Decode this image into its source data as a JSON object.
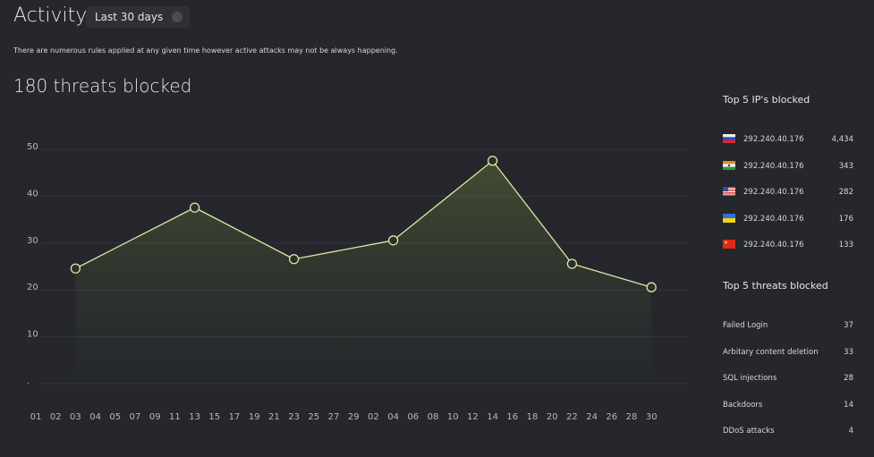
{
  "header": {
    "title": "Activity",
    "range": "Last 30 days",
    "description": "There are numerous rules applied at any given time however active attacks may not be always happening.",
    "summary": "180 threats blocked"
  },
  "top_ips": {
    "title": "Top 5 IP's blocked",
    "rows": [
      {
        "ip": "292.240.40.176",
        "count": "4,434"
      },
      {
        "ip": "292.240.40.176",
        "count": "343"
      },
      {
        "ip": "292.240.40.176",
        "count": "282"
      },
      {
        "ip": "292.240.40.176",
        "count": "176"
      },
      {
        "ip": "292.240.40.176",
        "count": "133"
      }
    ]
  },
  "top_threats": {
    "title": "Top 5 threats blocked",
    "rows": [
      {
        "name": "Failed Login",
        "count": "37"
      },
      {
        "name": "Arbitary content deletion",
        "count": "33"
      },
      {
        "name": "SQL injections",
        "count": "28"
      },
      {
        "name": "Backdoors",
        "count": "14"
      },
      {
        "name": "DDoS attacks",
        "count": "4"
      }
    ]
  },
  "chart_data": {
    "type": "line",
    "categories": [
      "01",
      "02",
      "03",
      "04",
      "05",
      "07",
      "09",
      "11",
      "13",
      "15",
      "17",
      "19",
      "21",
      "23",
      "25",
      "27",
      "29",
      "02",
      "04",
      "06",
      "08",
      "10",
      "12",
      "14",
      "16",
      "18",
      "20",
      "22",
      "24",
      "26",
      "28",
      "30"
    ],
    "series": [
      {
        "color": "#dde8a8",
        "values": [
          null,
          null,
          24,
          null,
          null,
          null,
          null,
          null,
          37,
          null,
          null,
          null,
          null,
          26,
          null,
          null,
          null,
          null,
          30,
          null,
          null,
          null,
          null,
          47,
          null,
          null,
          null,
          25,
          null,
          null,
          null,
          20
        ]
      }
    ],
    "ylim": [
      0,
      50
    ],
    "yticks": [
      {
        "value": 0,
        "label": "."
      },
      10,
      20,
      30,
      40,
      50
    ],
    "grid": true
  }
}
